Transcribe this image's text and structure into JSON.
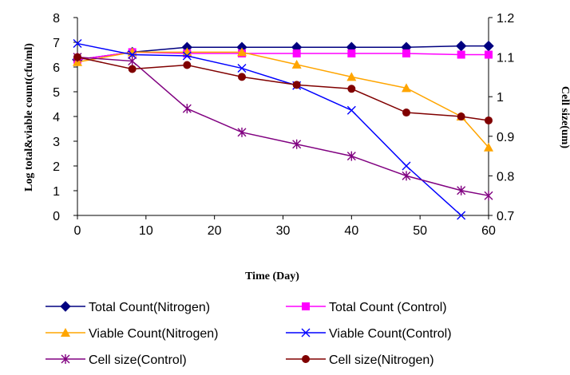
{
  "chart_data": {
    "type": "line",
    "xlabel": "Time (Day)",
    "ylabel_left": "Log total&viable count(cfu/ml)",
    "ylabel_right": "Cell size(um)",
    "x_ticks": [
      0,
      10,
      20,
      30,
      40,
      50,
      60
    ],
    "y_left_ticks": [
      0,
      1,
      2,
      3,
      4,
      5,
      6,
      7,
      8
    ],
    "y_right_ticks": [
      "0.7",
      "0.8",
      "0.9",
      "1",
      "1.1",
      "1.2"
    ],
    "xlim": [
      0,
      60
    ],
    "ylim_left": [
      0,
      8
    ],
    "ylim_right": [
      0.7,
      1.2
    ],
    "legend_position": "bottom",
    "series": [
      {
        "name": "Total Count(Nitrogen)",
        "axis": "left",
        "color": "#000080",
        "marker": "diamond",
        "x": [
          0,
          8,
          16,
          24,
          32,
          40,
          48,
          56,
          60
        ],
        "y": [
          6.3,
          6.6,
          6.8,
          6.8,
          6.8,
          6.8,
          6.8,
          6.85,
          6.85
        ]
      },
      {
        "name": "Total Count (Control)",
        "axis": "left",
        "color": "#FF00FF",
        "marker": "square",
        "x": [
          0,
          8,
          16,
          24,
          32,
          40,
          48,
          56,
          60
        ],
        "y": [
          6.3,
          6.6,
          6.55,
          6.55,
          6.55,
          6.55,
          6.55,
          6.5,
          6.5
        ]
      },
      {
        "name": "Viable Count(Nitrogen)",
        "axis": "left",
        "color": "#FFA500",
        "marker": "triangle",
        "x": [
          0,
          8,
          16,
          24,
          32,
          40,
          48,
          56,
          60
        ],
        "y": [
          6.2,
          6.6,
          6.6,
          6.6,
          6.1,
          5.6,
          5.15,
          4.0,
          2.75
        ]
      },
      {
        "name": "Viable Count(Control)",
        "axis": "left",
        "color": "#0000FF",
        "marker": "x",
        "x": [
          0,
          8,
          16,
          24,
          32,
          40,
          48,
          56
        ],
        "y": [
          6.95,
          6.5,
          6.45,
          5.95,
          5.25,
          4.25,
          2.0,
          0.0
        ]
      },
      {
        "name": "Cell size(Control)",
        "axis": "right",
        "color": "#800080",
        "marker": "star",
        "x": [
          0,
          8,
          16,
          24,
          32,
          40,
          48,
          56,
          60
        ],
        "y": [
          1.1,
          1.09,
          0.97,
          0.91,
          0.88,
          0.85,
          0.8,
          0.763,
          0.75
        ]
      },
      {
        "name": "Cell size(Nitrogen)",
        "axis": "right",
        "color": "#800000",
        "marker": "circle",
        "x": [
          0,
          8,
          16,
          24,
          32,
          40,
          48,
          56,
          60
        ],
        "y": [
          1.1,
          1.07,
          1.08,
          1.05,
          1.03,
          1.02,
          0.96,
          0.95,
          0.94
        ]
      }
    ]
  }
}
